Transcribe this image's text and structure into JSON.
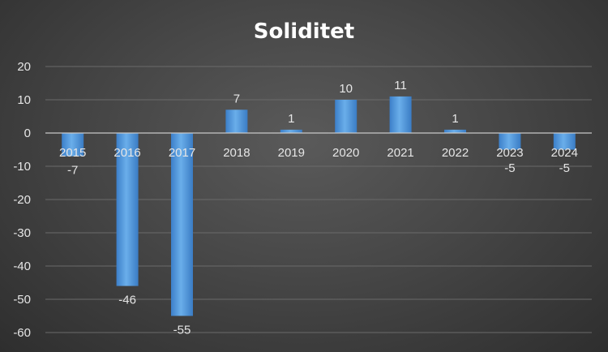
{
  "chart_data": {
    "type": "bar",
    "title": "Soliditet",
    "categories": [
      "2015",
      "2016",
      "2017",
      "2018",
      "2019",
      "2020",
      "2021",
      "2022",
      "2023",
      "2024"
    ],
    "values": [
      -7,
      -46,
      -55,
      7,
      1,
      10,
      11,
      1,
      -5,
      -5
    ],
    "xlabel": "",
    "ylabel": "",
    "ylim": [
      -60,
      20
    ],
    "yticks": [
      20,
      10,
      0,
      -10,
      -20,
      -30,
      -40,
      -50,
      -60
    ],
    "grid": true,
    "legend": "none",
    "bar_color": "#4a90d9",
    "bar_highlight": "#7ab6ee",
    "data_labels": true
  }
}
